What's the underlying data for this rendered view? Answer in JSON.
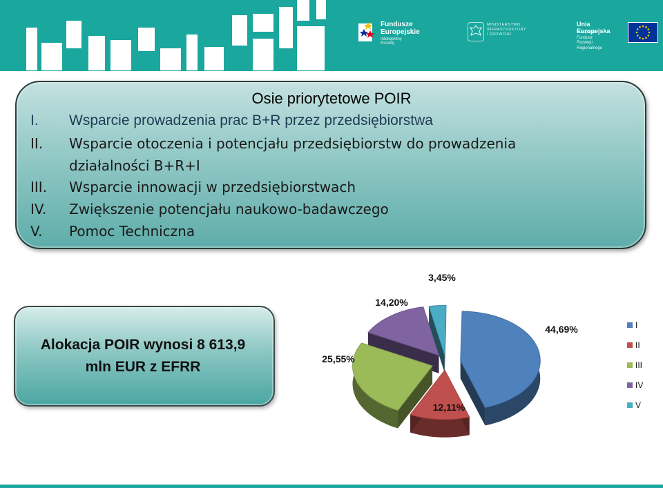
{
  "header": {
    "logo_fe": {
      "line1": "Fundusze",
      "line2": "Europejskie",
      "sub": "Inteligentny Rozwój",
      "icon": "fe-stars-icon"
    },
    "logo_ministry": {
      "lines": [
        "MINISTERSTWO",
        "INFRASTRUKTURY",
        "I ROZWOJU"
      ],
      "icon": "eagle-icon"
    },
    "logo_ue": {
      "title": "Unia Europejska",
      "sub1": "Europejski Fundusz",
      "sub2": "Rozwoju Regionalnego",
      "icon": "eu-flag-icon"
    },
    "colors": {
      "teal": "#1aa79d",
      "white": "#ffffff"
    }
  },
  "axes": {
    "title": "Osie priorytetowe POIR",
    "items": [
      {
        "num": "I.",
        "text": "Wsparcie prowadzenia prac B+R przez przedsiębiorstwa"
      },
      {
        "num": "II.",
        "text": "Wsparcie otoczenia i potencjału przedsiębiorstw do prowadzenia"
      },
      {
        "num": "",
        "text": "działalności B+R+I"
      },
      {
        "num": "III.",
        "text": "Wsparcie innowacji w przedsiębiorstwach"
      },
      {
        "num": "IV.",
        "text": "Zwiększenie potencjału naukowo-badawczego"
      },
      {
        "num": "V.",
        "text": "Pomoc Techniczna"
      }
    ]
  },
  "allocation": {
    "line1": "Alokacja POIR wynosi 8 613,9",
    "line2": "mln EUR z EFRR"
  },
  "chart_data": {
    "type": "pie",
    "categories": [
      "I",
      "II",
      "III",
      "IV",
      "V"
    ],
    "values": [
      44.69,
      12.11,
      25.55,
      14.2,
      3.45
    ],
    "labels": [
      "44,69%",
      "12,11%",
      "25,55%",
      "14,20%",
      "3,45%"
    ],
    "colors": [
      "#4f81bd",
      "#c0504d",
      "#9bbb59",
      "#8064a2",
      "#4bacc6"
    ],
    "legend": [
      "I",
      "II",
      "III",
      "IV",
      "V"
    ],
    "legend_position": "right",
    "exploded": true,
    "style_3d": true
  }
}
